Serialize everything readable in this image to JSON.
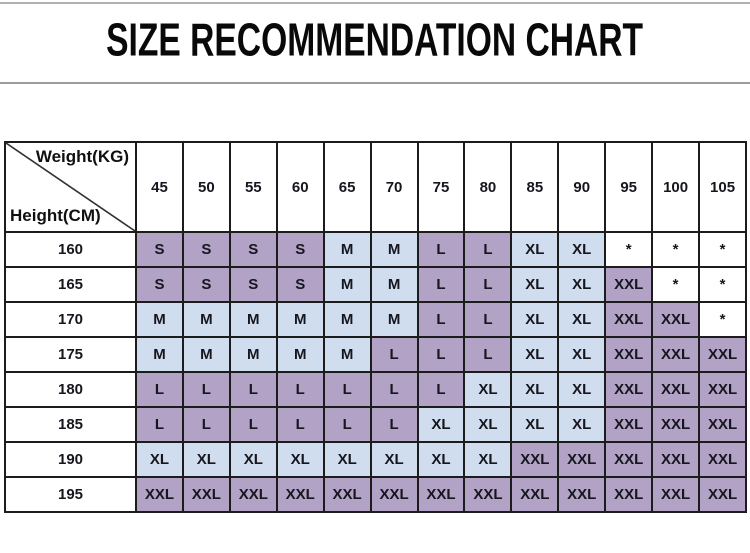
{
  "title": "SIZE RECOMMENDATION CHART",
  "corner": {
    "top_right_label": "Weight(KG)",
    "bottom_left_label": "Height(CM)"
  },
  "chart_data": {
    "type": "table",
    "title": "SIZE RECOMMENDATION CHART",
    "columns_label": "Weight(KG)",
    "rows_label": "Height(CM)",
    "weights_kg": [
      "45",
      "50",
      "55",
      "60",
      "65",
      "70",
      "75",
      "80",
      "85",
      "90",
      "95",
      "100",
      "105"
    ],
    "heights_cm": [
      "160",
      "165",
      "170",
      "175",
      "180",
      "185",
      "190",
      "195"
    ],
    "rows": [
      {
        "height_cm": "160",
        "sizes": [
          "S",
          "S",
          "S",
          "S",
          "M",
          "M",
          "L",
          "L",
          "XL",
          "XL",
          "*",
          "*",
          "*"
        ]
      },
      {
        "height_cm": "165",
        "sizes": [
          "S",
          "S",
          "S",
          "S",
          "M",
          "M",
          "L",
          "L",
          "XL",
          "XL",
          "XXL",
          "*",
          "*"
        ]
      },
      {
        "height_cm": "170",
        "sizes": [
          "M",
          "M",
          "M",
          "M",
          "M",
          "M",
          "L",
          "L",
          "XL",
          "XL",
          "XXL",
          "XXL",
          "*"
        ]
      },
      {
        "height_cm": "175",
        "sizes": [
          "M",
          "M",
          "M",
          "M",
          "M",
          "L",
          "L",
          "L",
          "XL",
          "XL",
          "XXL",
          "XXL",
          "XXL"
        ]
      },
      {
        "height_cm": "180",
        "sizes": [
          "L",
          "L",
          "L",
          "L",
          "L",
          "L",
          "L",
          "XL",
          "XL",
          "XL",
          "XXL",
          "XXL",
          "XXL"
        ]
      },
      {
        "height_cm": "185",
        "sizes": [
          "L",
          "L",
          "L",
          "L",
          "L",
          "L",
          "XL",
          "XL",
          "XL",
          "XL",
          "XXL",
          "XXL",
          "XXL"
        ]
      },
      {
        "height_cm": "190",
        "sizes": [
          "XL",
          "XL",
          "XL",
          "XL",
          "XL",
          "XL",
          "XL",
          "XL",
          "XXL",
          "XXL",
          "XXL",
          "XXL",
          "XXL"
        ]
      },
      {
        "height_cm": "195",
        "sizes": [
          "XXL",
          "XXL",
          "XXL",
          "XXL",
          "XXL",
          "XXL",
          "XXL",
          "XXL",
          "XXL",
          "XXL",
          "XXL",
          "XXL",
          "XXL"
        ]
      }
    ],
    "cell_colors": {
      "S": "#b1a2c6",
      "M": "#d0ddee",
      "L": "#b1a2c6",
      "XL": "#d0ddee",
      "XXL": "#b1a2c6",
      "*": "#ffffff"
    },
    "label_cell_color": "#ffffff",
    "border_color": "#1c1c1c"
  },
  "decor": {
    "top_rule_color": "#b0b0b0",
    "title_rule_color": "#9c9c9c"
  }
}
